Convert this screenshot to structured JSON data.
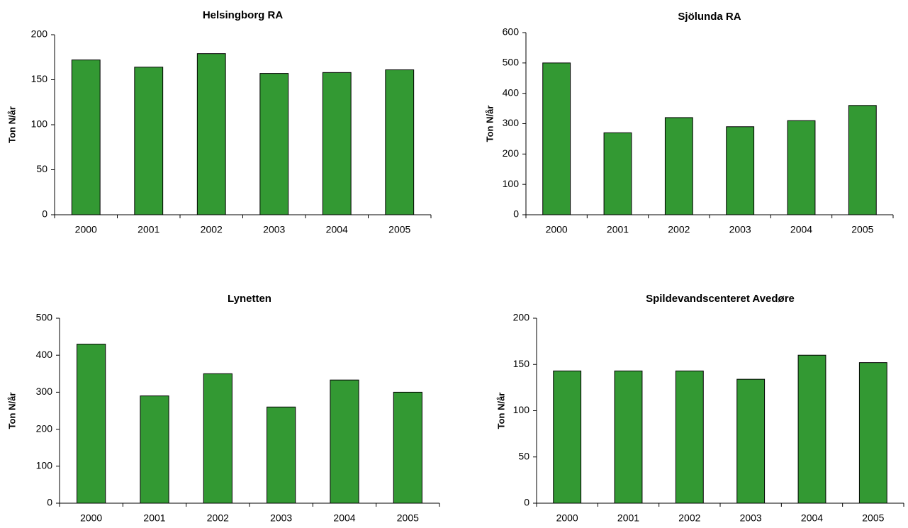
{
  "chart_data": [
    {
      "type": "bar",
      "title": "Helsingborg RA",
      "y_label": "Ton N/år",
      "categories": [
        "2000",
        "2001",
        "2002",
        "2003",
        "2004",
        "2005"
      ],
      "values": [
        172,
        164,
        179,
        157,
        158,
        161
      ],
      "color": "#339933",
      "ylim": [
        0,
        200
      ],
      "yticks": [
        0,
        50,
        100,
        150,
        200
      ]
    },
    {
      "type": "bar",
      "title": "Sjölunda RA",
      "y_label": "Ton N/år",
      "categories": [
        "2000",
        "2001",
        "2002",
        "2003",
        "2004",
        "2005"
      ],
      "values": [
        500,
        270,
        320,
        290,
        310,
        360
      ],
      "color": "#339933",
      "ylim": [
        0,
        600
      ],
      "yticks": [
        0,
        100,
        200,
        300,
        400,
        500,
        600
      ]
    },
    {
      "type": "bar",
      "title": "Lynetten",
      "y_label": "Ton N/år",
      "categories": [
        "2000",
        "2001",
        "2002",
        "2003",
        "2004",
        "2005"
      ],
      "values": [
        430,
        290,
        350,
        260,
        333,
        300
      ],
      "color": "#339933",
      "ylim": [
        0,
        500
      ],
      "yticks": [
        0,
        100,
        200,
        300,
        400,
        500
      ]
    },
    {
      "type": "bar",
      "title": "Spildevandscenteret Avedøre",
      "y_label": "Ton N/år",
      "categories": [
        "2000",
        "2001",
        "2002",
        "2003",
        "2004",
        "2005"
      ],
      "values": [
        143,
        143,
        143,
        134,
        160,
        152
      ],
      "color": "#339933",
      "ylim": [
        0,
        200
      ],
      "yticks": [
        0,
        50,
        100,
        150,
        200
      ]
    }
  ]
}
